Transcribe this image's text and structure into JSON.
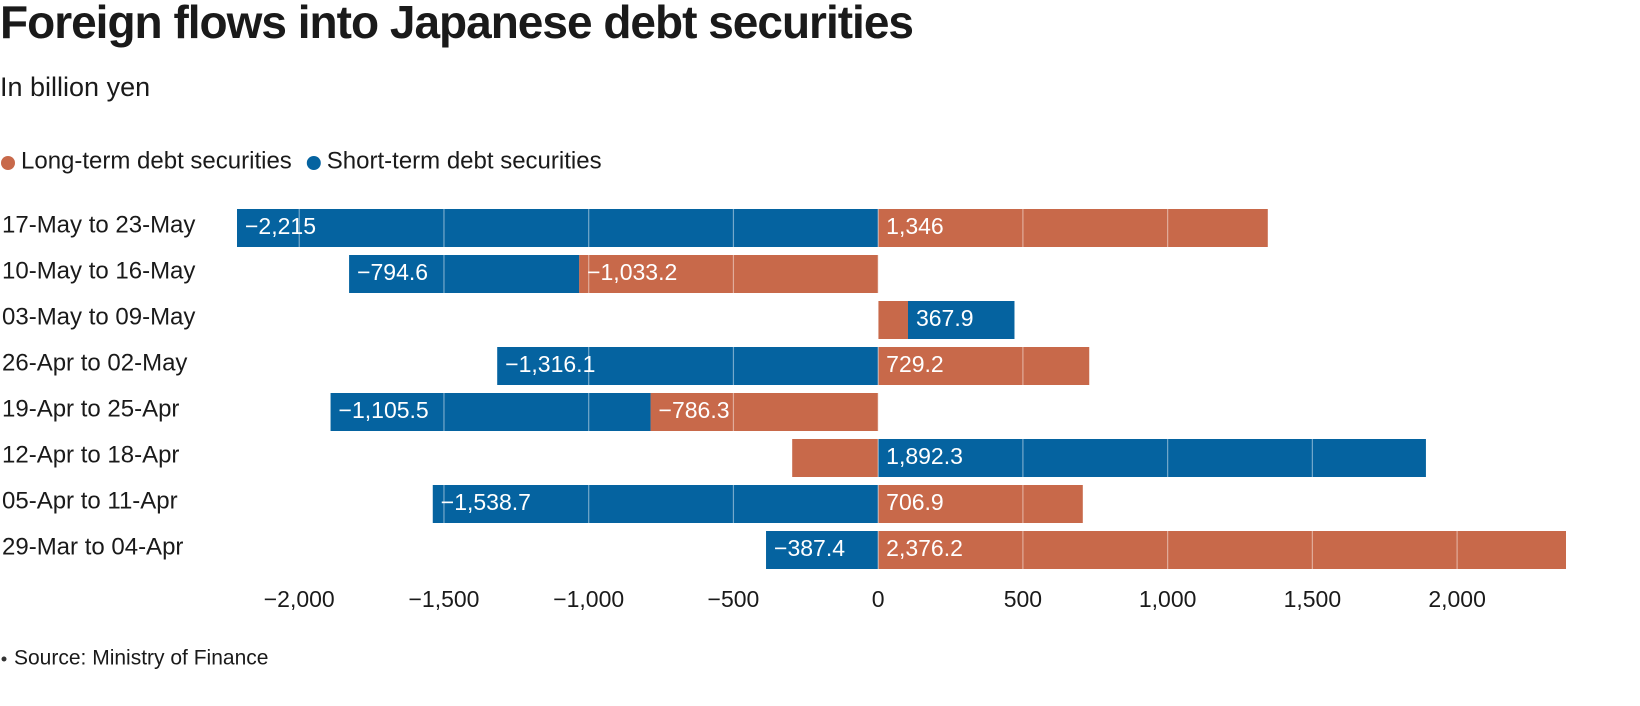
{
  "chart_data": {
    "type": "diverging-stacked-bar",
    "title": "Foreign flows into Japanese debt securities",
    "subtitle": "In billion yen",
    "source": "Source: Ministry of Finance",
    "categories": [
      "17-May to 23-May",
      "10-May to 16-May",
      "03-May to 09-May",
      "26-Apr to 02-May",
      "19-Apr to 25-Apr",
      "12-Apr to 18-Apr",
      "05-Apr to 11-Apr",
      "29-Mar to 04-Apr"
    ],
    "series": [
      {
        "name": "Long-term debt securities",
        "color": "#c8694a",
        "values": [
          1346,
          -1033.2,
          103,
          729.2,
          -786.3,
          -297,
          706.9,
          2376.2
        ],
        "value_labels": [
          "1,346",
          "−1,033.2",
          null,
          "729.2",
          "−786.3",
          null,
          "706.9",
          "2,376.2"
        ]
      },
      {
        "name": "Short-term debt securities",
        "color": "#0563a0",
        "values": [
          -2215,
          -794.6,
          367.9,
          -1316.1,
          -1105.5,
          1892.3,
          -1538.7,
          -387.4
        ],
        "value_labels": [
          "−2,215",
          "−794.6",
          "367.9",
          "−1,316.1",
          "−1,105.5",
          "1,892.3",
          "−1,538.7",
          "−387.4"
        ]
      }
    ],
    "xlim": [
      -2215,
      2376.2
    ],
    "xticks": [
      {
        "value": -2000,
        "label": "−2,000"
      },
      {
        "value": -1500,
        "label": "−1,500"
      },
      {
        "value": -1000,
        "label": "−1,000"
      },
      {
        "value": -500,
        "label": "−500"
      },
      0,
      500,
      {
        "value": 1000,
        "label": "1,000"
      },
      {
        "value": 1500,
        "label": "1,500"
      },
      {
        "value": 2000,
        "label": "2,000"
      }
    ],
    "grid": true
  }
}
